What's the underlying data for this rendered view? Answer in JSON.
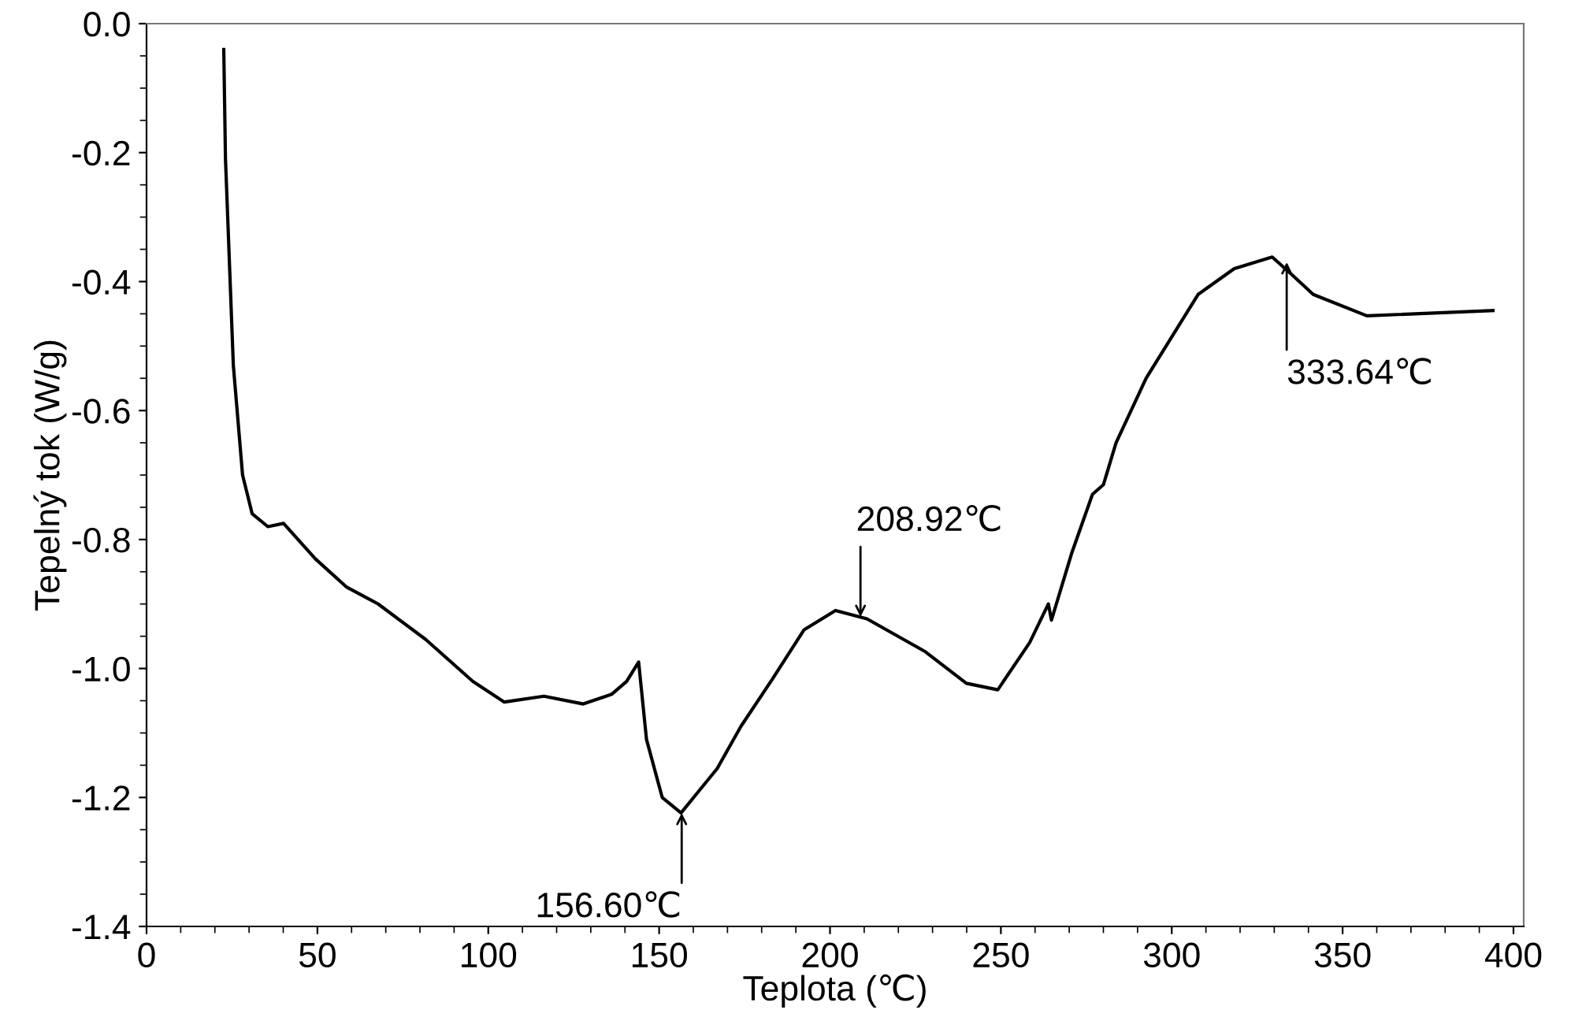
{
  "chart_data": {
    "type": "line",
    "xlabel": "Teplota (℃)",
    "ylabel": "Tepelný tok (W/g)",
    "xlim": [
      0,
      403
    ],
    "ylim": [
      -1.4,
      0.0
    ],
    "xticks": [
      0,
      50,
      100,
      150,
      200,
      250,
      300,
      350,
      400
    ],
    "yticks": [
      -1.4,
      -1.2,
      {
        "value": -1.0,
        "label": "-1.0"
      },
      -0.8,
      -0.6,
      -0.4,
      -0.2,
      {
        "value": 0.0,
        "label": "0.0"
      }
    ],
    "grid": false,
    "marker": "none",
    "line_style": "solid",
    "series": [
      {
        "color": "#000000",
        "x": [
          22.6,
          23.1,
          25.4,
          28.1,
          30.9,
          35.5,
          40.1,
          49.4,
          58.6,
          67.8,
          81.7,
          95.5,
          104.7,
          116.3,
          127.8,
          136.1,
          140.5,
          144.0,
          146.3,
          150.9,
          156.4,
          160.1,
          167.0,
          173.9,
          183.2,
          192.4,
          201.6,
          210.8,
          227.9,
          239.9,
          249.1,
          258.4,
          263.9,
          264.8,
          270.8,
          276.8,
          280.0,
          283.7,
          292.5,
          307.7,
          318.3,
          329.4,
          335.3,
          341.4,
          357.1,
          394.0
        ],
        "values": [
          -0.04,
          -0.21,
          -0.53,
          -0.7,
          -0.76,
          -0.78,
          -0.775,
          -0.83,
          -0.874,
          -0.9,
          -0.955,
          -1.02,
          -1.052,
          -1.043,
          -1.055,
          -1.04,
          -1.02,
          -0.99,
          -1.11,
          -1.2,
          -1.224,
          -1.2,
          -1.155,
          -1.09,
          -1.016,
          -0.94,
          -0.91,
          -0.923,
          -0.974,
          -1.023,
          -1.033,
          -0.96,
          -0.9,
          -0.925,
          -0.82,
          -0.73,
          -0.715,
          -0.65,
          -0.55,
          -0.42,
          -0.38,
          -0.362,
          -0.39,
          -0.42,
          -0.453,
          -0.445
        ]
      }
    ],
    "annotations": [
      {
        "text": "156.60℃",
        "x": 156.6,
        "y": -1.224
      },
      {
        "text": "208.92℃",
        "x": 208.92,
        "y": -0.92
      },
      {
        "text": "333.64℃",
        "x": 333.64,
        "y": -0.37
      }
    ]
  }
}
